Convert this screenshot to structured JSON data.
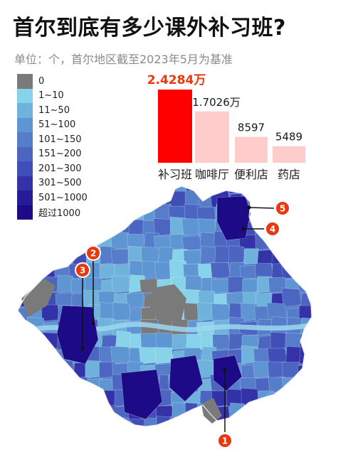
{
  "title": "首尔到底有多少课外补习班?",
  "subtitle": "单位：个，首尔地区截至2023年5月为基准",
  "colors": {
    "highlight_bar": "#ff0000",
    "other_bar": "#ffcccc",
    "highlight_label": "#e8380d",
    "marker": "#e8380d"
  },
  "legend": {
    "items": [
      {
        "label": "0",
        "color": "#7a7a7a"
      },
      {
        "label": "1~10",
        "color": "#87d3ea"
      },
      {
        "label": "11~50",
        "color": "#6fb3dd"
      },
      {
        "label": "51~100",
        "color": "#5e96d3"
      },
      {
        "label": "101~150",
        "color": "#557dca"
      },
      {
        "label": "151~200",
        "color": "#4b65c1"
      },
      {
        "label": "201~300",
        "color": "#3f4fb7"
      },
      {
        "label": "301~500",
        "color": "#3432a8"
      },
      {
        "label": "501~1000",
        "color": "#261c96"
      },
      {
        "label": "超过1000",
        "color": "#1c0a86"
      }
    ]
  },
  "chart_data": {
    "type": "bar",
    "categories": [
      "补习班",
      "咖啡厅",
      "便利店",
      "药店"
    ],
    "values": [
      24284,
      17026,
      8597,
      5489
    ],
    "value_labels": [
      "2.4284万",
      "1.7026万",
      "8597",
      "5489"
    ]
  },
  "map": {
    "markers": [
      {
        "label": "1"
      },
      {
        "label": "2"
      },
      {
        "label": "3"
      },
      {
        "label": "4"
      },
      {
        "label": "5"
      }
    ]
  }
}
